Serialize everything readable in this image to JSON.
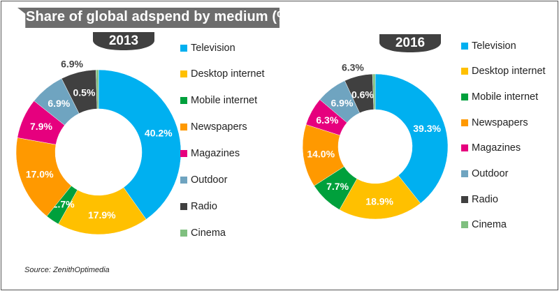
{
  "title": "Share of global adspend by medium (%)",
  "source": "Source: ZenithOptimedia",
  "chart_data": [
    {
      "type": "pie",
      "variant": "donut",
      "title": "2013",
      "categories": [
        "Television",
        "Desktop internet",
        "Mobile internet",
        "Newspapers",
        "Magazines",
        "Outdoor",
        "Radio",
        "Cinema"
      ],
      "values": [
        40.2,
        17.9,
        2.7,
        17.0,
        7.9,
        6.9,
        6.9,
        0.5
      ],
      "labels": [
        "40.2%",
        "17.9%",
        "2.7%",
        "17.0%",
        "7.9%",
        "6.9%",
        "6.9%",
        "0.5%"
      ],
      "legend": "right"
    },
    {
      "type": "pie",
      "variant": "donut",
      "title": "2016",
      "categories": [
        "Television",
        "Desktop internet",
        "Mobile internet",
        "Newspapers",
        "Magazines",
        "Outdoor",
        "Radio",
        "Cinema"
      ],
      "values": [
        39.3,
        18.9,
        7.7,
        14.0,
        6.3,
        6.9,
        6.3,
        0.6
      ],
      "labels": [
        "39.3%",
        "18.9%",
        "7.7%",
        "14.0%",
        "6.3%",
        "6.9%",
        "6.3%",
        "0.6%"
      ],
      "legend": "right"
    }
  ],
  "colors": [
    "#00b0f0",
    "#ffc000",
    "#00a03c",
    "#ff9900",
    "#e6007e",
    "#6fa4c0",
    "#404040",
    "#7fbf7f"
  ]
}
